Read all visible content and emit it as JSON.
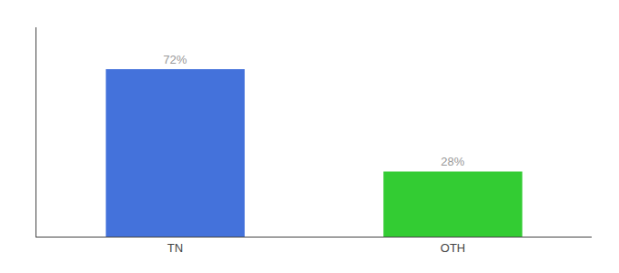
{
  "chart_data": {
    "type": "bar",
    "categories": [
      "TN",
      "OTH"
    ],
    "values": [
      72,
      28
    ],
    "value_labels": [
      "72%",
      "28%"
    ],
    "data_labels": true,
    "colors": [
      "#4472db",
      "#33cc33"
    ],
    "ylim": [
      0,
      90
    ],
    "tick_labels": "x",
    "grid": false
  }
}
